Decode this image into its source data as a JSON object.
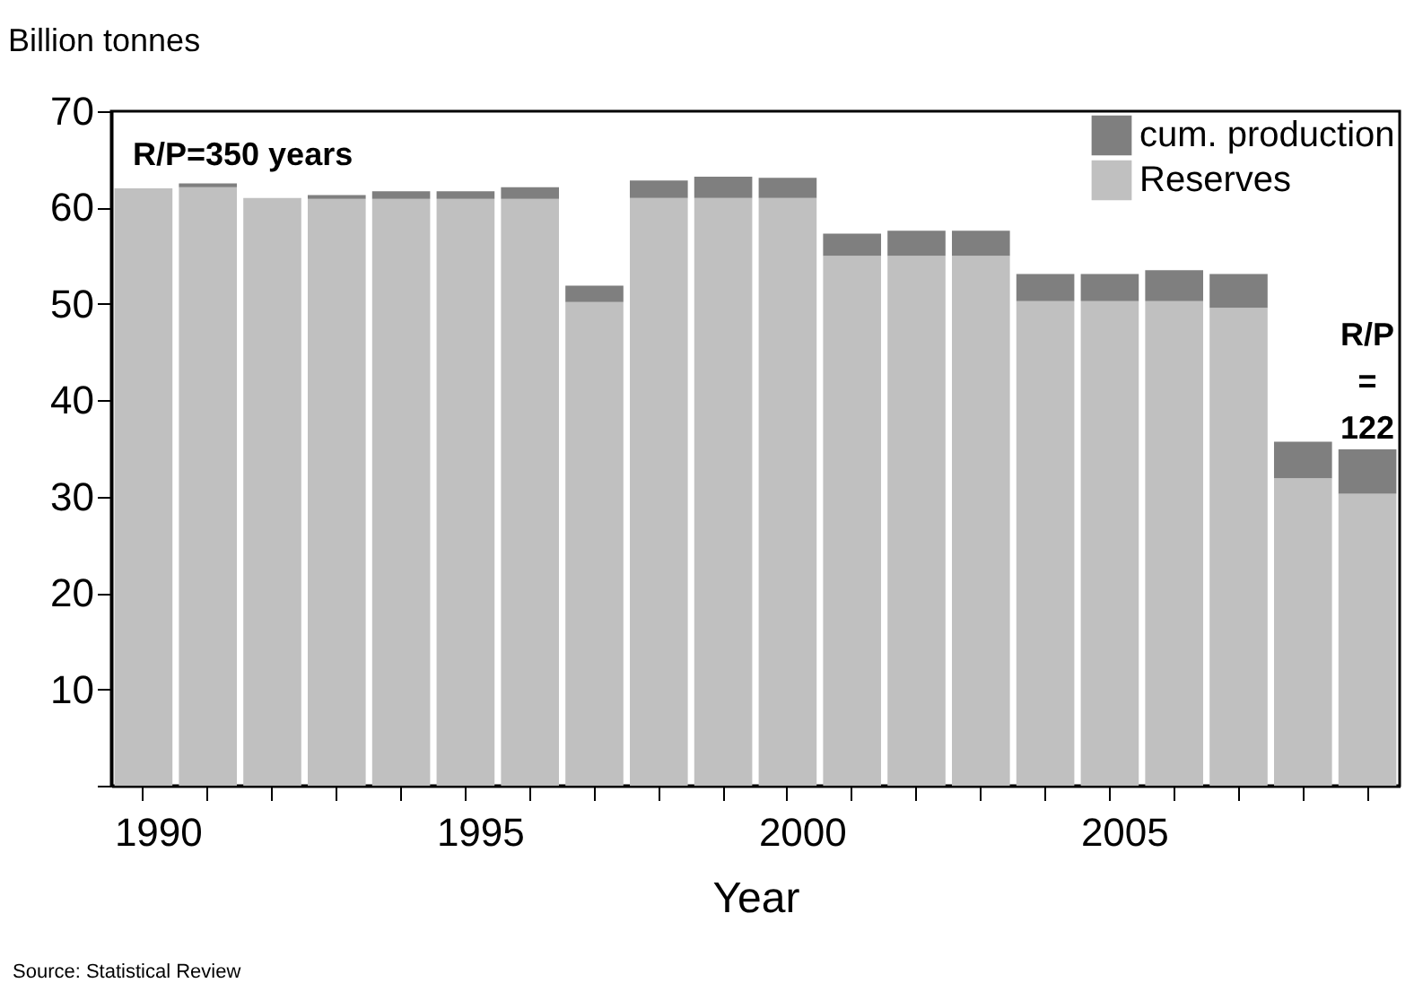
{
  "chart_data": {
    "type": "bar",
    "stacked": true,
    "categories": [
      "1990",
      null,
      null,
      null,
      null,
      "1995",
      null,
      null,
      null,
      null,
      "2000",
      null,
      null,
      null,
      null,
      "2005",
      null,
      null,
      null,
      null
    ],
    "series": [
      {
        "name": "Reserves",
        "color": "#c0c0c0",
        "values": [
          62.0,
          62.1,
          61.0,
          60.9,
          60.9,
          60.9,
          60.9,
          50.2,
          61.0,
          61.0,
          61.0,
          55.0,
          55.0,
          55.0,
          50.3,
          50.3,
          50.3,
          49.6,
          31.9,
          30.3
        ]
      },
      {
        "name": "cum. production",
        "color": "#7f7f7f",
        "values": [
          0,
          0.4,
          0,
          0.4,
          0.8,
          0.8,
          1.2,
          1.7,
          1.8,
          2.2,
          2.1,
          2.3,
          2.6,
          2.6,
          2.8,
          2.8,
          3.2,
          3.5,
          3.8,
          4.6
        ]
      }
    ],
    "ylabel": "Billion tonnes",
    "xlabel": "Year",
    "ylim": [
      0,
      70
    ],
    "yticks": [
      {
        "value": 0,
        "label": null
      },
      10,
      20,
      30,
      40,
      50,
      60,
      70
    ],
    "grid": false,
    "legend": "top right",
    "annotations": [
      "R/P=350 years",
      "R/P\n=\n122",
      "Source:  Statistical Review"
    ]
  }
}
